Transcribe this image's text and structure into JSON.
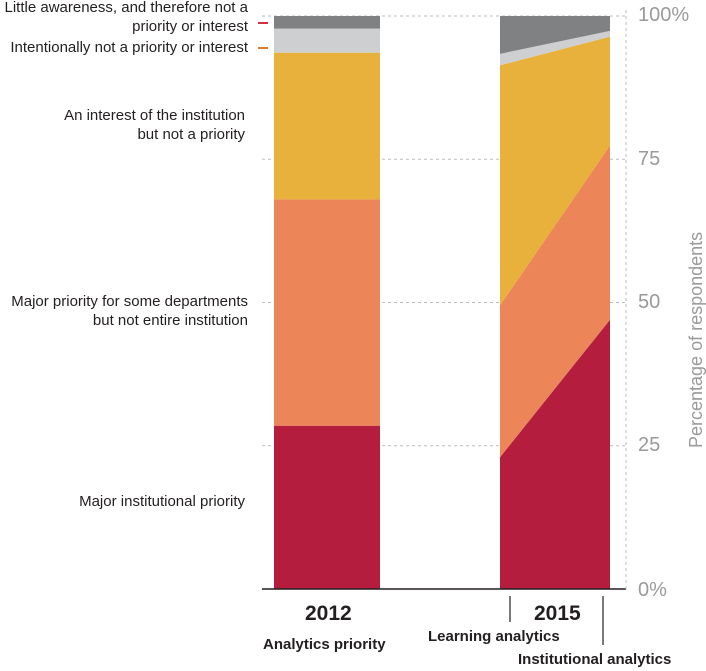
{
  "chart_data": {
    "type": "stacked-area-bar",
    "ylabel": "Percentage of respondents",
    "ylim": [
      0,
      100
    ],
    "yticks": [
      "0%",
      "25",
      "50",
      "75",
      "100%"
    ],
    "categories": [
      {
        "label": "Major institutional priority",
        "color": "#b41d3e"
      },
      {
        "label": "Major priority for some departments but not entire institution",
        "color": "#ec8558"
      },
      {
        "label": "An interest of the institution but not a priority",
        "color": "#e8b13c"
      },
      {
        "label": "Intentionally not a priority or interest",
        "color": "#cdcfd1"
      },
      {
        "label": "Little awareness, and therefore not a priority or interest",
        "color": "#7f8183"
      }
    ],
    "bar_2012": {
      "year": "2012",
      "caption": "Analytics priority",
      "values": [
        28.5,
        39.5,
        25.6,
        4.2,
        2.2
      ]
    },
    "bar_2015": {
      "year": "2015",
      "left_caption": "Learning analytics",
      "right_caption": "Institutional analytics",
      "learning": [
        23.0,
        26.5,
        41.9,
        2.0,
        6.6
      ],
      "institutional": [
        47.0,
        30.4,
        19.0,
        1.0,
        2.6
      ]
    },
    "legend_marks": [
      {
        "label": "Little awareness, and therefore not a priority or interest",
        "color": "#d0303f"
      },
      {
        "label": "Intentionally not a priority or interest",
        "color": "#e07b28"
      }
    ]
  }
}
